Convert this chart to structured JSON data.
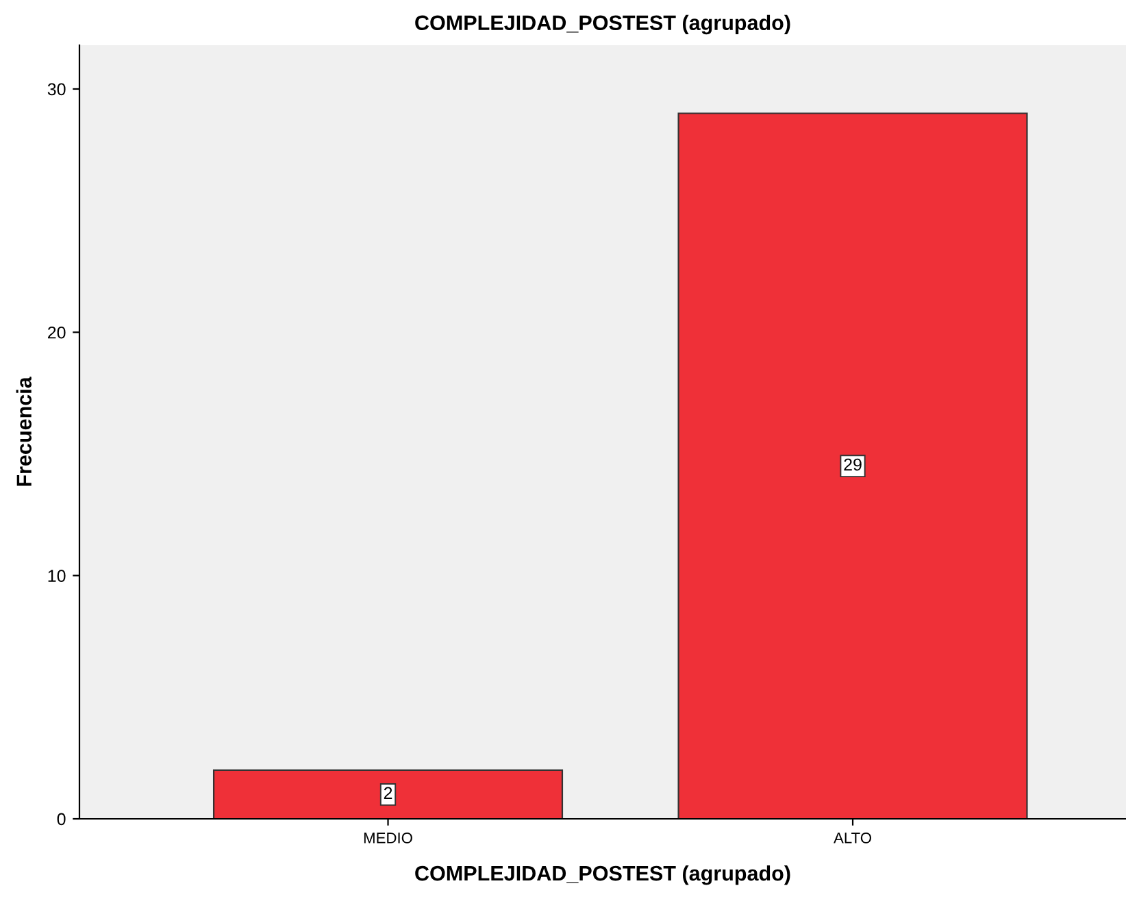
{
  "chart_data": {
    "type": "bar",
    "title": "COMPLEJIDAD_POSTEST (agrupado)",
    "xlabel": "COMPLEJIDAD_POSTEST (agrupado)",
    "ylabel": "Frecuencia",
    "categories": [
      "MEDIO",
      "ALTO"
    ],
    "values": [
      2,
      29
    ],
    "color": "#ef3038",
    "ylim": [
      0,
      31.8
    ],
    "yticks": [
      0,
      10,
      20,
      30
    ],
    "grid": false,
    "data_labels": true
  }
}
